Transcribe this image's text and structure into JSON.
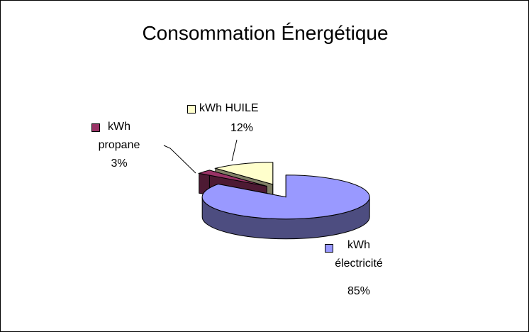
{
  "chart_data": {
    "type": "pie",
    "title": "Consommation Énergétique",
    "categories": [
      "kWh électricité",
      "kWh propane",
      "kWh HUILE"
    ],
    "values": [
      85,
      3,
      12
    ],
    "value_labels": [
      "85%",
      "3%",
      "12%"
    ],
    "colors": [
      "#9999ff",
      "#993366",
      "#ffffcc"
    ],
    "three_d": true,
    "exploded": true
  }
}
